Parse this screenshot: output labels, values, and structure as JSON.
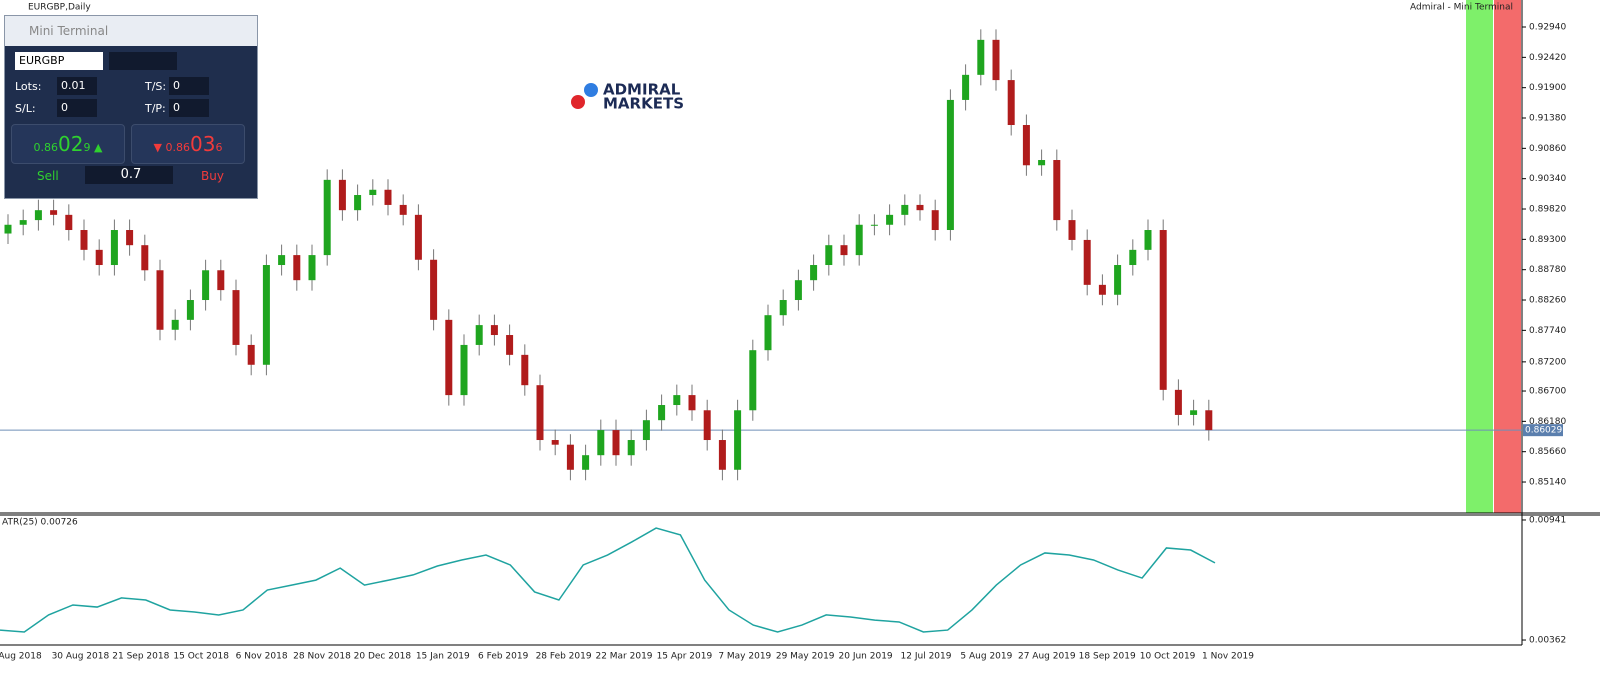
{
  "window": {
    "title": "EURGBP,Daily",
    "corner": "Admiral - Mini Terminal"
  },
  "logo": {
    "line1": "ADMIRAL",
    "line2": "MARKETS"
  },
  "mini_terminal": {
    "title": "Mini Terminal",
    "symbol": "EURGBP",
    "lots_label": "Lots:",
    "lots": "0.01",
    "sl_label": "S/L:",
    "sl": "0",
    "ts_label": "T/S:",
    "ts": "0",
    "tp_label": "T/P:",
    "tp": "0",
    "sell_big": "0.86",
    "sell_mid": "02",
    "sell_small": "9",
    "buy_big": "0.86",
    "buy_mid": "03",
    "buy_small": "6",
    "sell": "Sell",
    "buy": "Buy",
    "spread": "0.7"
  },
  "chart_data": {
    "type": "candlestick",
    "up_color": "#1fa51f",
    "down_color": "#b01c1c",
    "ylim": [
      0.84609,
      0.93403
    ],
    "yticks": [
      {
        "value": 0.9294,
        "label": "0.92940"
      },
      {
        "value": 0.9242,
        "label": "0.92420"
      },
      {
        "value": 0.919,
        "label": "0.91900"
      },
      {
        "value": 0.9138,
        "label": "0.91380"
      },
      {
        "value": 0.9086,
        "label": "0.90860"
      },
      {
        "value": 0.9034,
        "label": "0.90340"
      },
      {
        "value": 0.8982,
        "label": "0.89820"
      },
      {
        "value": 0.893,
        "label": "0.89300"
      },
      {
        "value": 0.8878,
        "label": "0.88780"
      },
      {
        "value": 0.8826,
        "label": "0.88260"
      },
      {
        "value": 0.8774,
        "label": "0.87740"
      },
      {
        "value": 0.872,
        "label": "0.87200"
      },
      {
        "value": 0.867,
        "label": "0.86700"
      },
      {
        "value": 0.8618,
        "label": "0.86180"
      },
      {
        "value": 0.8566,
        "label": "0.85660"
      },
      {
        "value": 0.8514,
        "label": "0.85140"
      }
    ],
    "current_price": 0.86029,
    "x_labels": [
      "Aug 2018",
      "30 Aug 2018",
      "21 Sep 2018",
      "15 Oct 2018",
      "6 Nov 2018",
      "28 Nov 2018",
      "20 Dec 2018",
      "15 Jan 2019",
      "6 Feb 2019",
      "28 Feb 2019",
      "22 Mar 2019",
      "15 Apr 2019",
      "7 May 2019",
      "29 May 2019",
      "20 Jun 2019",
      "12 Jul 2019",
      "5 Aug 2019",
      "27 Aug 2019",
      "18 Sep 2019",
      "10 Oct 2019",
      "1 Nov 2019"
    ],
    "candles": [
      [
        0.894,
        0.8973,
        0.8922,
        0.8955
      ],
      [
        0.8955,
        0.8981,
        0.8937,
        0.8963
      ],
      [
        0.8963,
        0.8998,
        0.8945,
        0.898
      ],
      [
        0.898,
        0.8998,
        0.8954,
        0.8972
      ],
      [
        0.8972,
        0.899,
        0.8928,
        0.8946
      ],
      [
        0.8946,
        0.8964,
        0.8894,
        0.8912
      ],
      [
        0.8912,
        0.893,
        0.8868,
        0.8886
      ],
      [
        0.8886,
        0.8964,
        0.8868,
        0.8946
      ],
      [
        0.8946,
        0.8964,
        0.8902,
        0.892
      ],
      [
        0.892,
        0.8938,
        0.8859,
        0.8877
      ],
      [
        0.8877,
        0.8895,
        0.8757,
        0.8775
      ],
      [
        0.8775,
        0.881,
        0.8757,
        0.8792
      ],
      [
        0.8792,
        0.8844,
        0.8774,
        0.8826
      ],
      [
        0.8826,
        0.8895,
        0.8808,
        0.8877
      ],
      [
        0.8877,
        0.8895,
        0.8825,
        0.8843
      ],
      [
        0.8843,
        0.8861,
        0.8731,
        0.8749
      ],
      [
        0.8749,
        0.8767,
        0.8697,
        0.8715
      ],
      [
        0.8715,
        0.8904,
        0.8697,
        0.8886
      ],
      [
        0.8886,
        0.8921,
        0.8868,
        0.8903
      ],
      [
        0.8903,
        0.8921,
        0.8842,
        0.886
      ],
      [
        0.886,
        0.8921,
        0.8842,
        0.8903
      ],
      [
        0.8903,
        0.905,
        0.8885,
        0.9032
      ],
      [
        0.9032,
        0.905,
        0.8962,
        0.898
      ],
      [
        0.898,
        0.9024,
        0.8962,
        0.9006
      ],
      [
        0.9006,
        0.9033,
        0.8988,
        0.9015
      ],
      [
        0.9015,
        0.9033,
        0.8971,
        0.8989
      ],
      [
        0.8989,
        0.9007,
        0.8954,
        0.8972
      ],
      [
        0.8972,
        0.899,
        0.8877,
        0.8895
      ],
      [
        0.8895,
        0.8913,
        0.8774,
        0.8792
      ],
      [
        0.8792,
        0.881,
        0.8645,
        0.8663
      ],
      [
        0.8663,
        0.8767,
        0.8645,
        0.8749
      ],
      [
        0.8749,
        0.8801,
        0.8731,
        0.8783
      ],
      [
        0.8783,
        0.8801,
        0.8748,
        0.8766
      ],
      [
        0.8766,
        0.8784,
        0.8714,
        0.8732
      ],
      [
        0.8732,
        0.875,
        0.8662,
        0.868
      ],
      [
        0.868,
        0.8698,
        0.8568,
        0.8586
      ],
      [
        0.8586,
        0.8604,
        0.856,
        0.8578
      ],
      [
        0.8578,
        0.8596,
        0.8517,
        0.8535
      ],
      [
        0.8535,
        0.8578,
        0.8517,
        0.856
      ],
      [
        0.856,
        0.8621,
        0.8542,
        0.8603
      ],
      [
        0.8603,
        0.8621,
        0.8542,
        0.856
      ],
      [
        0.856,
        0.8604,
        0.8542,
        0.8586
      ],
      [
        0.8586,
        0.8638,
        0.8568,
        0.862
      ],
      [
        0.862,
        0.8664,
        0.8602,
        0.8646
      ],
      [
        0.8646,
        0.8681,
        0.8628,
        0.8663
      ],
      [
        0.8663,
        0.8681,
        0.8619,
        0.8637
      ],
      [
        0.8637,
        0.8655,
        0.8568,
        0.8586
      ],
      [
        0.8586,
        0.8604,
        0.8517,
        0.8535
      ],
      [
        0.8535,
        0.8655,
        0.8517,
        0.8637
      ],
      [
        0.8637,
        0.8758,
        0.8619,
        0.874
      ],
      [
        0.874,
        0.8818,
        0.8722,
        0.88
      ],
      [
        0.88,
        0.8844,
        0.8782,
        0.8826
      ],
      [
        0.8826,
        0.8878,
        0.8808,
        0.886
      ],
      [
        0.886,
        0.8904,
        0.8842,
        0.8886
      ],
      [
        0.8886,
        0.8938,
        0.8868,
        0.892
      ],
      [
        0.892,
        0.8938,
        0.8885,
        0.8903
      ],
      [
        0.8903,
        0.8973,
        0.8885,
        0.8955
      ],
      [
        0.8955,
        0.8973,
        0.8937,
        0.8955
      ],
      [
        0.8955,
        0.899,
        0.8937,
        0.8972
      ],
      [
        0.8972,
        0.9007,
        0.8954,
        0.8989
      ],
      [
        0.8989,
        0.9007,
        0.8962,
        0.898
      ],
      [
        0.898,
        0.8998,
        0.8928,
        0.8946
      ],
      [
        0.8946,
        0.9187,
        0.8928,
        0.9169
      ],
      [
        0.9169,
        0.923,
        0.9151,
        0.9212
      ],
      [
        0.9212,
        0.929,
        0.9194,
        0.9272
      ],
      [
        0.9272,
        0.929,
        0.9185,
        0.9203
      ],
      [
        0.9203,
        0.9221,
        0.9108,
        0.9126
      ],
      [
        0.9126,
        0.9144,
        0.9039,
        0.9057
      ],
      [
        0.9057,
        0.9084,
        0.9039,
        0.9066
      ],
      [
        0.9066,
        0.9084,
        0.8945,
        0.8963
      ],
      [
        0.8963,
        0.8981,
        0.8911,
        0.8929
      ],
      [
        0.8929,
        0.8947,
        0.8834,
        0.8852
      ],
      [
        0.8852,
        0.887,
        0.8817,
        0.8835
      ],
      [
        0.8835,
        0.8904,
        0.8817,
        0.8886
      ],
      [
        0.8886,
        0.893,
        0.8868,
        0.8912
      ],
      [
        0.8912,
        0.8964,
        0.8894,
        0.8946
      ],
      [
        0.8946,
        0.8964,
        0.8654,
        0.8672
      ],
      [
        0.8672,
        0.869,
        0.8611,
        0.8629
      ],
      [
        0.8629,
        0.8655,
        0.8611,
        0.8637
      ],
      [
        0.8637,
        0.8655,
        0.8585,
        0.8603
      ]
    ],
    "atr": {
      "label": "ATR(25) 0.00726",
      "color": "#1fa3a0",
      "y2lim": [
        0.00338,
        0.00965
      ],
      "y2ticks": [
        0.00941,
        0.00362
      ],
      "values": [
        0.0041,
        0.00401,
        0.00483,
        0.00531,
        0.00521,
        0.00565,
        0.00555,
        0.00507,
        0.00497,
        0.00483,
        0.00507,
        0.00603,
        0.00627,
        0.00651,
        0.00709,
        0.00627,
        0.00651,
        0.00676,
        0.00719,
        0.00748,
        0.00772,
        0.00724,
        0.00594,
        0.00555,
        0.00724,
        0.00772,
        0.00835,
        0.00902,
        0.00869,
        0.00651,
        0.00507,
        0.00434,
        0.00401,
        0.00434,
        0.00483,
        0.00473,
        0.00458,
        0.00449,
        0.00401,
        0.0041,
        0.00507,
        0.00627,
        0.00724,
        0.00782,
        0.00772,
        0.00748,
        0.007,
        0.00661,
        0.00806,
        0.00796,
        0.00734
      ]
    }
  }
}
